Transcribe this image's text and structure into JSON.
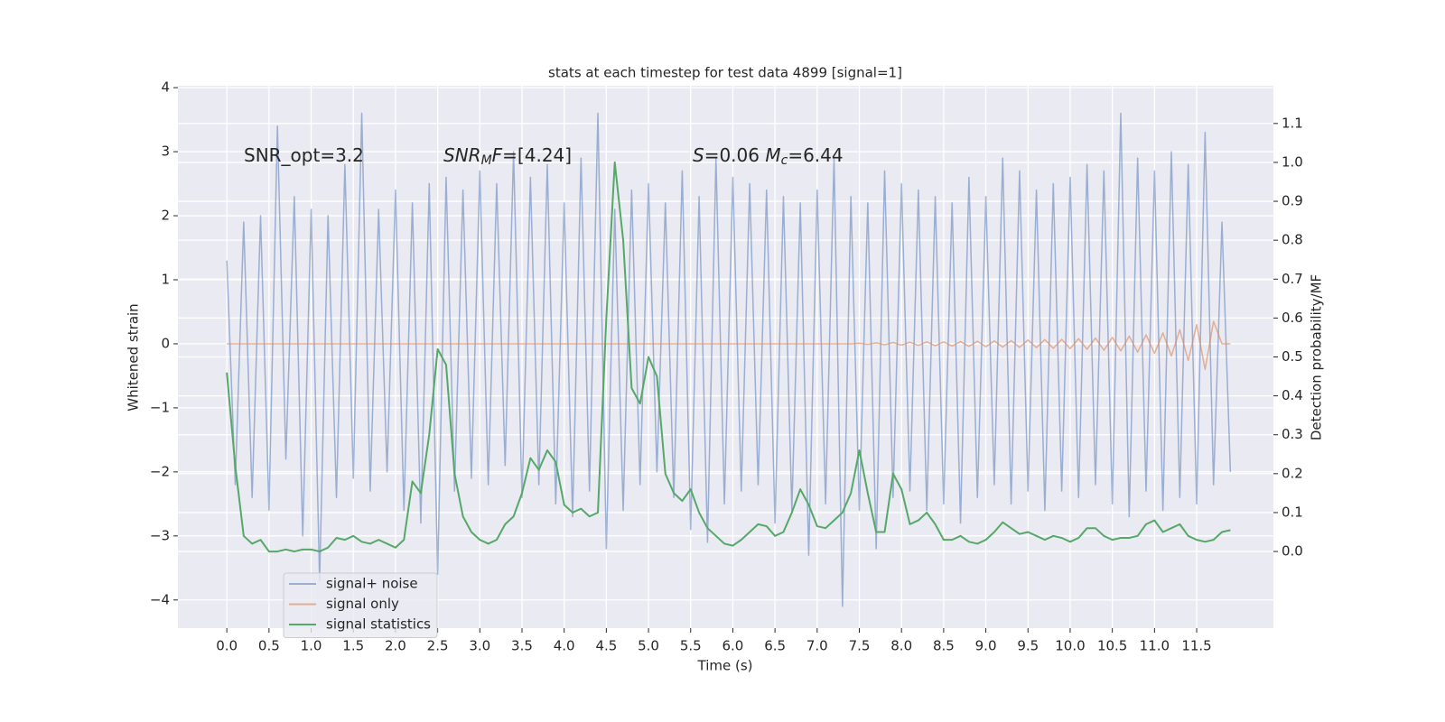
{
  "chart_data": {
    "type": "line",
    "title": "stats at each timestep for test data 4899 [signal=1]",
    "xlabel": "Time (s)",
    "ylabel": "Whitened strain",
    "y2label": "Detection probability/MF",
    "annotations": [
      [
        {
          "text": "SNR_opt=3.2",
          "italic": false
        }
      ],
      [
        {
          "text": "SNR",
          "italic": true
        },
        {
          "text": "M",
          "italic": true,
          "sub": true
        },
        {
          "text": "F",
          "italic": true
        },
        {
          "text": "=[4.24]",
          "italic": false
        }
      ],
      [
        {
          "text": "S",
          "italic": true
        },
        {
          "text": "=0.06   ",
          "italic": false
        },
        {
          "text": "M",
          "italic": true
        },
        {
          "text": "c",
          "italic": true,
          "sub": true
        },
        {
          "text": "=6.44",
          "italic": false
        }
      ]
    ],
    "x": [
      0.0,
      0.1,
      0.2,
      0.3,
      0.4,
      0.5,
      0.6,
      0.7,
      0.8,
      0.9,
      1.0,
      1.1,
      1.2,
      1.3,
      1.4,
      1.5,
      1.6,
      1.7,
      1.8,
      1.9,
      2.0,
      2.1,
      2.2,
      2.3,
      2.4,
      2.5,
      2.6,
      2.7,
      2.8,
      2.9,
      3.0,
      3.1,
      3.2,
      3.3,
      3.4,
      3.5,
      3.6,
      3.7,
      3.8,
      3.9,
      4.0,
      4.1,
      4.2,
      4.3,
      4.4,
      4.5,
      4.6,
      4.7,
      4.8,
      4.9,
      5.0,
      5.1,
      5.2,
      5.3,
      5.4,
      5.5,
      5.6,
      5.7,
      5.8,
      5.9,
      6.0,
      6.1,
      6.2,
      6.3,
      6.4,
      6.5,
      6.6,
      6.7,
      6.8,
      6.9,
      7.0,
      7.1,
      7.2,
      7.3,
      7.4,
      7.5,
      7.6,
      7.7,
      7.8,
      7.9,
      8.0,
      8.1,
      8.2,
      8.3,
      8.4,
      8.5,
      8.6,
      8.7,
      8.8,
      8.9,
      9.0,
      9.1,
      9.2,
      9.3,
      9.4,
      9.5,
      9.6,
      9.7,
      9.8,
      9.9,
      10.0,
      10.1,
      10.2,
      10.3,
      10.4,
      10.5,
      10.6,
      10.7,
      10.8,
      10.9,
      11.0,
      11.1,
      11.2,
      11.3,
      11.4,
      11.5,
      11.6,
      11.7,
      11.8,
      11.9
    ],
    "series": [
      {
        "name": "signal+ noise",
        "color": "#4c72b0",
        "opacity": 0.5,
        "values": [
          1.3,
          -2.2,
          1.9,
          -2.4,
          2.0,
          -2.6,
          3.4,
          -1.8,
          2.3,
          -3.0,
          2.1,
          -3.7,
          2.0,
          -2.4,
          2.8,
          -2.1,
          3.6,
          -2.3,
          2.1,
          -2.0,
          2.4,
          -2.6,
          2.2,
          -2.8,
          2.5,
          -3.6,
          2.6,
          -2.3,
          2.4,
          -2.1,
          2.7,
          -2.2,
          2.5,
          -1.9,
          3.0,
          -2.4,
          2.6,
          -2.2,
          2.8,
          -2.5,
          2.2,
          -2.7,
          2.9,
          -2.3,
          3.6,
          -3.2,
          2.1,
          -2.6,
          2.4,
          -2.2,
          2.5,
          -2.0,
          2.2,
          -2.4,
          2.7,
          -2.9,
          2.3,
          -3.1,
          2.9,
          -2.5,
          2.6,
          -2.3,
          2.5,
          -2.2,
          2.4,
          -2.8,
          2.3,
          -2.6,
          2.2,
          -3.3,
          2.4,
          -2.5,
          2.9,
          -4.1,
          2.3,
          -2.6,
          2.2,
          -3.2,
          2.7,
          -2.4,
          2.5,
          -2.3,
          2.4,
          -2.6,
          2.3,
          -2.5,
          2.2,
          -2.8,
          2.6,
          -2.4,
          2.3,
          -2.2,
          2.9,
          -2.5,
          2.7,
          -2.3,
          2.4,
          -2.6,
          2.5,
          -2.3,
          2.6,
          -2.4,
          2.8,
          -2.2,
          2.7,
          -2.5,
          3.6,
          -2.7,
          2.9,
          -2.3,
          2.7,
          -2.6,
          3.0,
          -2.4,
          2.8,
          -2.5,
          3.3,
          -2.2,
          1.9,
          -2.0
        ]
      },
      {
        "name": "signal only",
        "color": "#dd8452",
        "opacity": 0.6,
        "values": [
          0,
          0,
          0,
          0,
          0,
          0,
          0,
          0,
          0,
          0,
          0,
          0,
          0,
          0,
          0,
          0,
          0,
          0,
          0,
          0,
          0,
          0,
          0,
          0,
          0,
          0,
          0,
          0,
          0,
          0,
          0,
          0,
          0,
          0,
          0,
          0,
          0,
          0,
          0,
          0,
          0,
          0,
          0,
          0,
          0,
          0,
          0,
          0,
          0,
          0,
          0,
          0,
          0,
          0,
          0,
          0,
          0,
          0,
          0,
          0,
          0,
          0,
          0,
          0,
          0,
          0,
          0,
          0,
          0,
          0,
          0,
          0,
          0,
          0,
          0,
          0.01,
          -0.01,
          0.015,
          -0.015,
          0.02,
          -0.02,
          0.025,
          -0.025,
          0.03,
          -0.03,
          0.03,
          -0.035,
          0.035,
          -0.04,
          0.04,
          -0.045,
          0.045,
          -0.05,
          0.05,
          -0.055,
          0.06,
          -0.06,
          0.065,
          -0.07,
          0.07,
          -0.075,
          0.08,
          -0.085,
          0.09,
          -0.1,
          0.1,
          -0.11,
          0.12,
          -0.13,
          0.14,
          -0.15,
          0.17,
          -0.19,
          0.22,
          -0.26,
          0.3,
          -0.4,
          0.35,
          0,
          0
        ]
      },
      {
        "name": "signal statistics",
        "color": "#55a868",
        "opacity": 1,
        "axis": "y2",
        "values": [
          0.46,
          0.22,
          0.04,
          0.02,
          0.03,
          0.0,
          0.0,
          0.005,
          0.0,
          0.005,
          0.005,
          0.0,
          0.01,
          0.035,
          0.03,
          0.04,
          0.025,
          0.02,
          0.03,
          0.02,
          0.01,
          0.03,
          0.18,
          0.15,
          0.3,
          0.52,
          0.48,
          0.2,
          0.09,
          0.05,
          0.03,
          0.02,
          0.03,
          0.07,
          0.09,
          0.15,
          0.24,
          0.21,
          0.26,
          0.23,
          0.12,
          0.1,
          0.11,
          0.09,
          0.1,
          0.6,
          1.0,
          0.8,
          0.42,
          0.38,
          0.5,
          0.45,
          0.2,
          0.15,
          0.13,
          0.16,
          0.1,
          0.06,
          0.04,
          0.02,
          0.015,
          0.03,
          0.05,
          0.07,
          0.065,
          0.04,
          0.05,
          0.1,
          0.16,
          0.12,
          0.065,
          0.06,
          0.08,
          0.1,
          0.15,
          0.26,
          0.15,
          0.05,
          0.05,
          0.2,
          0.16,
          0.07,
          0.08,
          0.1,
          0.07,
          0.03,
          0.03,
          0.04,
          0.025,
          0.02,
          0.03,
          0.05,
          0.075,
          0.06,
          0.045,
          0.05,
          0.04,
          0.03,
          0.04,
          0.035,
          0.025,
          0.035,
          0.06,
          0.06,
          0.04,
          0.03,
          0.035,
          0.035,
          0.04,
          0.07,
          0.08,
          0.05,
          0.06,
          0.07,
          0.04,
          0.03,
          0.025,
          0.03,
          0.05,
          0.055
        ]
      }
    ],
    "xlim": [
      -0.58,
      12.41
    ],
    "ylim": [
      -4.44,
      4.03
    ],
    "y2lim": [
      -0.197,
      1.197
    ],
    "xticks": [
      {
        "value": 0,
        "label": "0.0"
      },
      {
        "value": 0.5,
        "label": "0.5"
      },
      {
        "value": 1,
        "label": "1.0"
      },
      {
        "value": 1.5,
        "label": "1.5"
      },
      {
        "value": 2,
        "label": "2.0"
      },
      {
        "value": 2.5,
        "label": "2.5"
      },
      {
        "value": 3,
        "label": "3.0"
      },
      {
        "value": 3.5,
        "label": "3.5"
      },
      {
        "value": 4,
        "label": "4.0"
      },
      {
        "value": 4.5,
        "label": "4.5"
      },
      {
        "value": 5,
        "label": "5.0"
      },
      {
        "value": 5.5,
        "label": "5.5"
      },
      {
        "value": 6,
        "label": "6.0"
      },
      {
        "value": 6.5,
        "label": "6.5"
      },
      {
        "value": 7,
        "label": "7.0"
      },
      {
        "value": 7.5,
        "label": "7.5"
      },
      {
        "value": 8,
        "label": "8.0"
      },
      {
        "value": 8.5,
        "label": "8.5"
      },
      {
        "value": 9,
        "label": "9.0"
      },
      {
        "value": 9.5,
        "label": "9.5"
      },
      {
        "value": 10,
        "label": "10.0"
      },
      {
        "value": 10.5,
        "label": "10.5"
      },
      {
        "value": 11,
        "label": "11.0"
      },
      {
        "value": 11.5,
        "label": "11.5"
      }
    ],
    "yticks": [
      {
        "value": -4,
        "label": "−4"
      },
      {
        "value": -3,
        "label": "−3"
      },
      {
        "value": -2,
        "label": "−2"
      },
      {
        "value": -1,
        "label": "−1"
      },
      0,
      1,
      2,
      3,
      4
    ],
    "y2ticks": [
      {
        "value": 0,
        "label": "0.0"
      },
      {
        "value": 0.1,
        "label": "0.1"
      },
      {
        "value": 0.2,
        "label": "0.2"
      },
      {
        "value": 0.3,
        "label": "0.3"
      },
      {
        "value": 0.4,
        "label": "0.4"
      },
      {
        "value": 0.5,
        "label": "0.5"
      },
      {
        "value": 0.6,
        "label": "0.6"
      },
      {
        "value": 0.7,
        "label": "0.7"
      },
      {
        "value": 0.8,
        "label": "0.8"
      },
      {
        "value": 0.9,
        "label": "0.9"
      },
      {
        "value": 1.0,
        "label": "1.0"
      },
      {
        "value": 1.1,
        "label": "1.1"
      }
    ],
    "grid": true,
    "background": "#eaeaf2",
    "legend": "lower left"
  }
}
